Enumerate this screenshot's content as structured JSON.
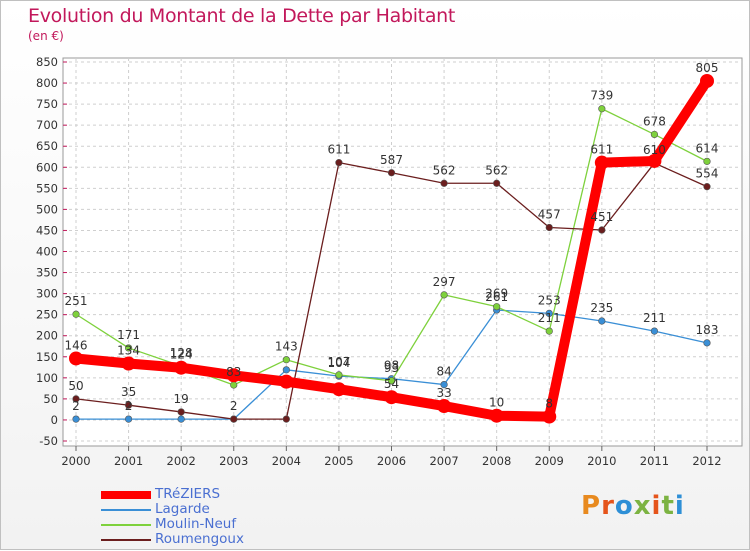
{
  "header": {
    "title": "Evolution du Montant de la Dette par Habitant",
    "subtitle": "(en €)"
  },
  "logo": {
    "text": "Proxiti",
    "colors": [
      "#e88a1f",
      "#e5541b",
      "#2e8fd6",
      "#7cb342",
      "#e5541b",
      "#7cb342",
      "#2e8fd6"
    ]
  },
  "chart_data": {
    "type": "line",
    "title": "Evolution du Montant de la Dette par Habitant",
    "subtitle": "(en €)",
    "xlabel": "",
    "ylabel": "",
    "x": [
      "2000",
      "2001",
      "2002",
      "2003",
      "2004",
      "2005",
      "2006",
      "2007",
      "2008",
      "2009",
      "2010",
      "2011",
      "2012"
    ],
    "ylim": [
      -50,
      850
    ],
    "yticks": [
      -50,
      0,
      50,
      100,
      150,
      200,
      250,
      300,
      350,
      400,
      450,
      500,
      550,
      600,
      650,
      700,
      750,
      800,
      850
    ],
    "grid": true,
    "legend_position": "bottom-left",
    "series": [
      {
        "name": "TRéZIERS",
        "color": "#ff0000",
        "values": [
          146,
          134,
          124,
          106,
          91,
          73,
          54,
          33,
          10,
          8,
          611,
          615,
          805
        ],
        "labels": [
          "146",
          "134",
          "124",
          "",
          "",
          "",
          "54",
          "33",
          "10",
          "8",
          "611",
          "",
          "805"
        ]
      },
      {
        "name": "Lagarde",
        "color": "#3a8fd6",
        "values": [
          2,
          2,
          2,
          2,
          119,
          104,
          98,
          84,
          261,
          253,
          235,
          211,
          183
        ],
        "labels": [
          "2",
          "2",
          "",
          "2",
          "",
          "104",
          "98",
          "84",
          "261",
          "253",
          "235",
          "211",
          "183"
        ]
      },
      {
        "name": "Moulin-Neuf",
        "color": "#7ed13c",
        "values": [
          251,
          171,
          128,
          83,
          143,
          107,
          93,
          297,
          269,
          211,
          739,
          678,
          614
        ],
        "labels": [
          "251",
          "171",
          "128",
          "83",
          "143",
          "107",
          "93",
          "297",
          "269",
          "211",
          "739",
          "678",
          "614"
        ]
      },
      {
        "name": "Roumengoux",
        "color": "#6b1e1e",
        "values": [
          50,
          35,
          19,
          2,
          2,
          611,
          587,
          562,
          562,
          457,
          451,
          610,
          554
        ],
        "labels": [
          "50",
          "35",
          "19",
          "",
          "",
          "611",
          "587",
          "562",
          "562",
          "457",
          "451",
          "610",
          "554"
        ]
      }
    ]
  }
}
